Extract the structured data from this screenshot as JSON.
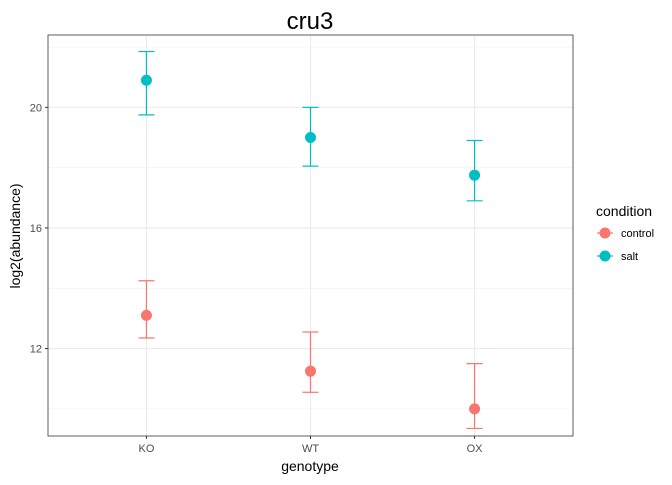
{
  "chart_data": {
    "type": "scatter",
    "title": "cru3",
    "xlabel": "genotype",
    "ylabel": "log2(abundance)",
    "categories": [
      "KO",
      "WT",
      "OX"
    ],
    "y_ticks": [
      12,
      16,
      20
    ],
    "ylim": [
      9.1,
      22.4
    ],
    "grid": true,
    "legend_position": "right",
    "legend_title": "condition",
    "series": [
      {
        "name": "control",
        "color": "#F8766D",
        "values": [
          13.1,
          11.25,
          10.0
        ],
        "error_low": [
          12.35,
          10.55,
          9.35
        ],
        "error_high": [
          14.25,
          12.55,
          11.5
        ]
      },
      {
        "name": "salt",
        "color": "#00BFC4",
        "values": [
          20.9,
          19.0,
          17.75
        ],
        "error_low": [
          19.75,
          18.05,
          16.9
        ],
        "error_high": [
          21.85,
          20.0,
          18.9
        ]
      }
    ]
  }
}
